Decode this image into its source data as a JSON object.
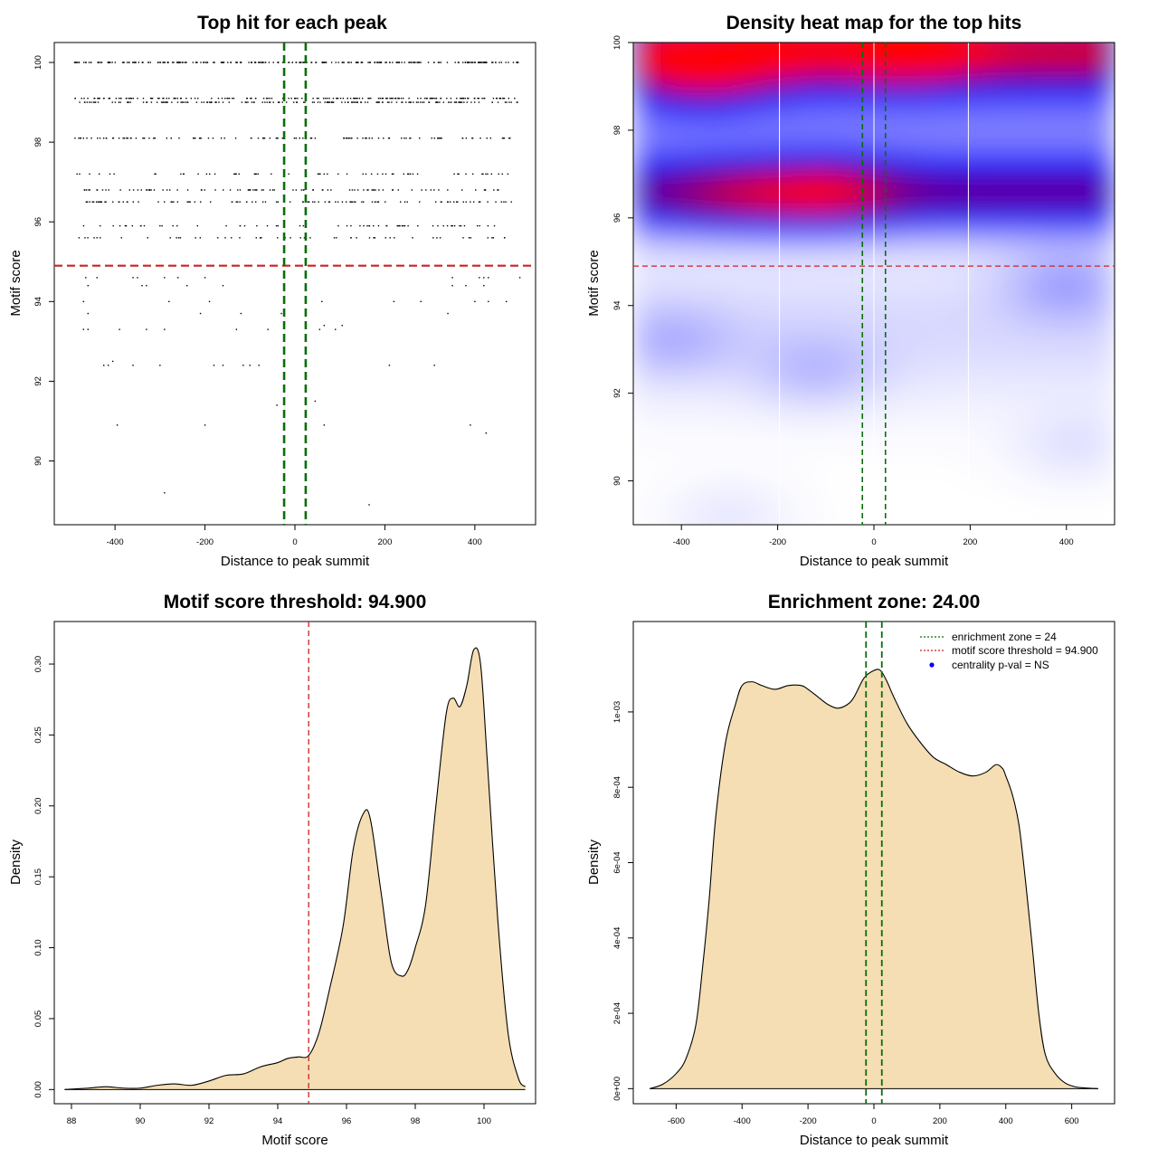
{
  "colors": {
    "threshold_line": "#cc2222",
    "enrichment_line": "#0a6e0a",
    "density_fill": "#f5deb3",
    "heat_low": "#ffffff",
    "heat_mid": "#0000ff",
    "heat_high": "#ff0000",
    "legend_dot": "#0000ff"
  },
  "chart_data": [
    {
      "id": "top_hits",
      "type": "scatter",
      "title": "Top hit for each peak",
      "xlabel": "Distance to peak summit",
      "ylabel": "Motif score",
      "xlim": [
        -535,
        535
      ],
      "ylim": [
        88.4,
        100.5
      ],
      "xticks": [
        -400,
        -200,
        0,
        200,
        400
      ],
      "yticks": [
        90,
        92,
        94,
        96,
        98,
        100
      ],
      "threshold": 94.9,
      "enrichment_zone": [
        -24,
        24
      ],
      "rows": [
        {
          "y": 100.0,
          "count": 260,
          "xmin": -490,
          "xmax": 500
        },
        {
          "y": 99.1,
          "count": 170,
          "xmin": -490,
          "xmax": 500
        },
        {
          "y": 99.0,
          "count": 170,
          "xmin": -490,
          "xmax": 500
        },
        {
          "y": 98.1,
          "count": 110,
          "xmin": -490,
          "xmax": 480
        },
        {
          "y": 97.2,
          "count": 60,
          "xmin": -490,
          "xmax": 500
        },
        {
          "y": 96.8,
          "count": 90,
          "xmin": -470,
          "xmax": 480
        },
        {
          "y": 96.5,
          "count": 100,
          "xmin": -470,
          "xmax": 500
        },
        {
          "y": 95.9,
          "count": 60,
          "xmin": -470,
          "xmax": 490
        },
        {
          "y": 95.6,
          "count": 50,
          "xmin": -480,
          "xmax": 480
        }
      ],
      "points": [
        {
          "x": -465,
          "y": 94.6
        },
        {
          "x": -440,
          "y": 94.6
        },
        {
          "x": -360,
          "y": 94.6
        },
        {
          "x": -350,
          "y": 94.6
        },
        {
          "x": -290,
          "y": 94.6
        },
        {
          "x": -260,
          "y": 94.6
        },
        {
          "x": -200,
          "y": 94.6
        },
        {
          "x": 350,
          "y": 94.6
        },
        {
          "x": 410,
          "y": 94.6
        },
        {
          "x": 420,
          "y": 94.6
        },
        {
          "x": 430,
          "y": 94.6
        },
        {
          "x": 500,
          "y": 94.6
        },
        {
          "x": -460,
          "y": 94.4
        },
        {
          "x": -340,
          "y": 94.4
        },
        {
          "x": -330,
          "y": 94.4
        },
        {
          "x": -240,
          "y": 94.4
        },
        {
          "x": -160,
          "y": 94.4
        },
        {
          "x": 350,
          "y": 94.4
        },
        {
          "x": 380,
          "y": 94.4
        },
        {
          "x": 420,
          "y": 94.4
        },
        {
          "x": -470,
          "y": 94.0
        },
        {
          "x": -280,
          "y": 94.0
        },
        {
          "x": -190,
          "y": 94.0
        },
        {
          "x": 60,
          "y": 94.0
        },
        {
          "x": 220,
          "y": 94.0
        },
        {
          "x": 280,
          "y": 94.0
        },
        {
          "x": 400,
          "y": 94.0
        },
        {
          "x": 430,
          "y": 94.0
        },
        {
          "x": 470,
          "y": 94.0
        },
        {
          "x": -460,
          "y": 93.7
        },
        {
          "x": -210,
          "y": 93.7
        },
        {
          "x": -120,
          "y": 93.7
        },
        {
          "x": -30,
          "y": 93.7
        },
        {
          "x": 340,
          "y": 93.7
        },
        {
          "x": -470,
          "y": 93.3
        },
        {
          "x": -460,
          "y": 93.3
        },
        {
          "x": -390,
          "y": 93.3
        },
        {
          "x": -330,
          "y": 93.3
        },
        {
          "x": -290,
          "y": 93.3
        },
        {
          "x": -130,
          "y": 93.3
        },
        {
          "x": -60,
          "y": 93.3
        },
        {
          "x": 55,
          "y": 93.3
        },
        {
          "x": 65,
          "y": 93.4
        },
        {
          "x": 90,
          "y": 93.3
        },
        {
          "x": 105,
          "y": 93.4
        },
        {
          "x": -425,
          "y": 92.4
        },
        {
          "x": -415,
          "y": 92.4
        },
        {
          "x": -405,
          "y": 92.5
        },
        {
          "x": -360,
          "y": 92.4
        },
        {
          "x": -300,
          "y": 92.4
        },
        {
          "x": -180,
          "y": 92.4
        },
        {
          "x": -160,
          "y": 92.4
        },
        {
          "x": -115,
          "y": 92.4
        },
        {
          "x": -100,
          "y": 92.4
        },
        {
          "x": -80,
          "y": 92.4
        },
        {
          "x": 210,
          "y": 92.4
        },
        {
          "x": 310,
          "y": 92.4
        },
        {
          "x": 45,
          "y": 91.5
        },
        {
          "x": -40,
          "y": 91.4
        },
        {
          "x": -395,
          "y": 90.9
        },
        {
          "x": -200,
          "y": 90.9
        },
        {
          "x": 65,
          "y": 90.9
        },
        {
          "x": 390,
          "y": 90.9
        },
        {
          "x": 425,
          "y": 90.7
        },
        {
          "x": -290,
          "y": 89.2
        },
        {
          "x": 165,
          "y": 88.9
        }
      ]
    },
    {
      "id": "heatmap",
      "type": "heatmap",
      "title": "Density heat map for the top hits",
      "xlabel": "Distance to peak summit",
      "ylabel": "Motif score",
      "xlim": [
        -500,
        500
      ],
      "ylim": [
        89.0,
        100.0
      ],
      "xticks": [
        -400,
        -200,
        0,
        200,
        400
      ],
      "yticks": [
        90,
        92,
        94,
        96,
        98,
        100
      ],
      "threshold": 94.9,
      "enrichment_zone": [
        -24,
        24
      ],
      "bands": [
        {
          "y": 99.8,
          "spread": 0.7,
          "weight": 1.0
        },
        {
          "y": 96.6,
          "spread": 0.6,
          "weight": 0.75
        },
        {
          "y": 98.1,
          "spread": 0.5,
          "weight": 0.18
        },
        {
          "y": 93.5,
          "spread": 1.2,
          "weight": 0.08
        }
      ],
      "hotspots": [
        {
          "x": -360,
          "y": 99.3,
          "weight": 0.45
        },
        {
          "x": 60,
          "y": 99.9,
          "weight": 0.5
        },
        {
          "x": -230,
          "y": 99.9,
          "weight": 0.3
        },
        {
          "x": -100,
          "y": 96.6,
          "weight": 0.35
        },
        {
          "x": -280,
          "y": 96.5,
          "weight": 0.2
        },
        {
          "x": 400,
          "y": 94.5,
          "weight": 0.15
        },
        {
          "x": -420,
          "y": 93.2,
          "weight": 0.1
        },
        {
          "x": -120,
          "y": 92.5,
          "weight": 0.1
        },
        {
          "x": 420,
          "y": 90.8,
          "weight": 0.06
        },
        {
          "x": -300,
          "y": 89.2,
          "weight": 0.05
        }
      ],
      "gridlines_x": [
        -200,
        0,
        200
      ]
    },
    {
      "id": "score_density",
      "type": "area",
      "title": "Motif score threshold: 94.900",
      "xlabel": "Motif score",
      "ylabel": "Density",
      "xlim": [
        87.5,
        101.5
      ],
      "ylim": [
        -0.01,
        0.33
      ],
      "xticks": [
        88,
        90,
        92,
        94,
        96,
        98,
        100
      ],
      "yticks": [
        0.0,
        0.05,
        0.1,
        0.15,
        0.2,
        0.25,
        0.3
      ],
      "ytick_labels": [
        "0.00",
        "0.05",
        "0.10",
        "0.15",
        "0.20",
        "0.25",
        "0.30"
      ],
      "threshold": 94.9,
      "x": [
        87.8,
        88.5,
        89.0,
        89.5,
        90.0,
        90.5,
        91.0,
        91.5,
        92.0,
        92.5,
        93.0,
        93.5,
        94.0,
        94.3,
        94.6,
        94.9,
        95.2,
        95.5,
        95.9,
        96.2,
        96.5,
        96.7,
        97.0,
        97.3,
        97.6,
        97.8,
        98.0,
        98.3,
        98.6,
        98.9,
        99.1,
        99.3,
        99.5,
        99.7,
        99.9,
        100.1,
        100.4,
        100.7,
        101.0,
        101.2
      ],
      "y": [
        0.0,
        0.001,
        0.002,
        0.001,
        0.001,
        0.003,
        0.004,
        0.003,
        0.006,
        0.01,
        0.011,
        0.016,
        0.019,
        0.022,
        0.023,
        0.024,
        0.04,
        0.07,
        0.115,
        0.17,
        0.195,
        0.19,
        0.14,
        0.09,
        0.08,
        0.085,
        0.1,
        0.13,
        0.2,
        0.265,
        0.276,
        0.27,
        0.285,
        0.31,
        0.3,
        0.23,
        0.12,
        0.04,
        0.008,
        0.002
      ]
    },
    {
      "id": "distance_density",
      "type": "area",
      "title": "Enrichment zone: 24.00",
      "xlabel": "Distance to peak summit",
      "ylabel": "Density",
      "xlim": [
        -730,
        730
      ],
      "ylim": [
        -4e-05,
        0.00124
      ],
      "xticks": [
        -600,
        -400,
        -200,
        0,
        200,
        400,
        600
      ],
      "yticks": [
        0.0,
        0.0002,
        0.0004,
        0.0006,
        0.0008,
        0.001
      ],
      "ytick_labels": [
        "0e+00",
        "2e-04",
        "4e-04",
        "6e-04",
        "8e-04",
        "1e-03"
      ],
      "enrichment_zone": [
        -24,
        24
      ],
      "x": [
        -680,
        -640,
        -600,
        -570,
        -540,
        -520,
        -500,
        -480,
        -450,
        -420,
        -400,
        -370,
        -340,
        -300,
        -260,
        -220,
        -200,
        -170,
        -140,
        -110,
        -80,
        -60,
        -30,
        0,
        20,
        40,
        60,
        100,
        140,
        180,
        220,
        260,
        300,
        340,
        370,
        390,
        400,
        420,
        440,
        460,
        480,
        500,
        520,
        550,
        580,
        610,
        640,
        680
      ],
      "y": [
        0.0,
        1.2e-05,
        4e-05,
        8e-05,
        0.00017,
        0.00032,
        0.0005,
        0.00072,
        0.00092,
        0.00102,
        0.00107,
        0.00108,
        0.00107,
        0.00106,
        0.00107,
        0.00107,
        0.00106,
        0.00104,
        0.00102,
        0.00101,
        0.00102,
        0.00104,
        0.00109,
        0.00111,
        0.00111,
        0.00108,
        0.00104,
        0.00097,
        0.00092,
        0.00088,
        0.00086,
        0.00084,
        0.00083,
        0.00084,
        0.00086,
        0.00085,
        0.00083,
        0.00078,
        0.0007,
        0.00055,
        0.00038,
        0.0002,
        9e-05,
        4e-05,
        1.5e-05,
        5e-06,
        2e-06,
        0.0
      ],
      "legend": [
        {
          "label": "enrichment zone = 24",
          "style": "dotted-green"
        },
        {
          "label": "motif score threshold = 94.900",
          "style": "dotted-red"
        },
        {
          "label": "centrality p-val = NS",
          "style": "blue-dot"
        }
      ]
    }
  ]
}
